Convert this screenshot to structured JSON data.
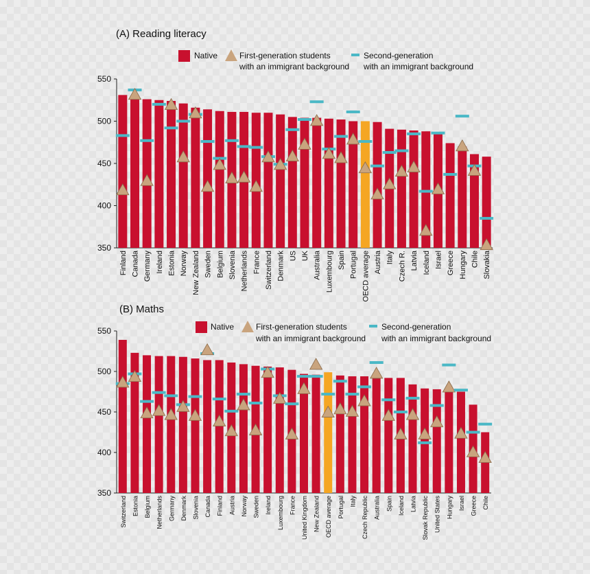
{
  "chart_data": [
    {
      "type": "bar",
      "title": "(A) Reading literacy",
      "legend": {
        "native": "Native",
        "first_line1": "First-generation students",
        "first_line2": "with an immigrant background",
        "second_line1": "Second-generation",
        "second_line2": "with an immigrant background"
      },
      "ylim": [
        350,
        550
      ],
      "yticks": [
        350,
        400,
        450,
        500,
        550
      ],
      "highlight": "OECD average",
      "categories": [
        "Finland",
        "Canada",
        "Germany",
        "Ireland",
        "Estonia",
        "Norway",
        "New Zealand",
        "Sweden",
        "Belgium",
        "Slovenia",
        "Netherlands",
        "France",
        "Switzerland",
        "Denmark",
        "US",
        "UK",
        "Australia",
        "Luxembourg",
        "Spain",
        "Portugal",
        "OECD average",
        "Austria",
        "Italy",
        "Czech R.",
        "Latvia",
        "Iceland",
        "Israel",
        "Greece",
        "Hungary",
        "Chile",
        "Slovakia"
      ],
      "series": [
        {
          "name": "Native",
          "values": [
            531,
            527,
            526,
            525,
            524,
            521,
            516,
            514,
            512,
            511,
            511,
            510,
            510,
            508,
            505,
            504,
            504,
            503,
            502,
            500,
            500,
            499,
            491,
            490,
            489,
            488,
            486,
            474,
            470,
            461,
            458
          ]
        },
        {
          "name": "First-generation students with an immigrant background",
          "values": [
            418,
            531,
            429,
            null,
            519,
            457,
            509,
            422,
            448,
            432,
            433,
            422,
            457,
            448,
            458,
            472,
            500,
            461,
            456,
            478,
            444,
            413,
            425,
            440,
            445,
            370,
            419,
            null,
            470,
            441,
            353
          ]
        },
        {
          "name": "Second-generation with an immigrant background",
          "values": [
            483,
            537,
            477,
            520,
            492,
            500,
            508,
            476,
            456,
            477,
            470,
            469,
            458,
            449,
            490,
            502,
            523,
            467,
            482,
            511,
            476,
            447,
            463,
            465,
            485,
            417,
            486,
            437,
            506,
            447,
            385
          ]
        }
      ]
    },
    {
      "type": "bar",
      "title": "(B) Maths",
      "legend": {
        "native": "Native",
        "first_line1": "First-generation students",
        "first_line2": "with an immigrant background",
        "second_line1": "Second-generation",
        "second_line2": "with an immigrant background"
      },
      "ylim": [
        350,
        550
      ],
      "yticks": [
        350,
        400,
        450,
        500,
        550
      ],
      "highlight": "OECD average",
      "categories": [
        "Switzerland",
        "Estonia",
        "Belgium",
        "Netherlands",
        "Germany",
        "Denmark",
        "Slovenia",
        "Canada",
        "Finland",
        "Austria",
        "Norway",
        "Sweden",
        "Ireland",
        "Luxembourg",
        "France",
        "United Kingdom",
        "New Zealand",
        "OECD average",
        "Portugal",
        "Italy",
        "Czech Republic",
        "Australia",
        "Spain",
        "Iceland",
        "Latvia",
        "Slovak Republic",
        "United States",
        "Hungary",
        "Israel",
        "Greece",
        "Chile"
      ],
      "series": [
        {
          "name": "Native",
          "values": [
            539,
            523,
            520,
            519,
            519,
            518,
            516,
            514,
            514,
            511,
            509,
            507,
            506,
            505,
            502,
            497,
            496,
            499,
            495,
            494,
            494,
            493,
            492,
            492,
            484,
            479,
            478,
            477,
            475,
            459,
            425
          ]
        },
        {
          "name": "First-generation students with an immigrant background",
          "values": [
            486,
            493,
            448,
            451,
            446,
            456,
            445,
            526,
            438,
            426,
            458,
            427,
            498,
            466,
            422,
            478,
            508,
            449,
            453,
            450,
            463,
            497,
            445,
            422,
            446,
            422,
            437,
            480,
            423,
            400,
            393
          ]
        },
        {
          "name": "Second-generation with an immigrant background",
          "values": [
            485,
            497,
            463,
            474,
            470,
            459,
            469,
            522,
            466,
            451,
            472,
            461,
            503,
            470,
            460,
            494,
            494,
            472,
            488,
            472,
            481,
            511,
            465,
            450,
            467,
            412,
            458,
            508,
            477,
            425,
            435
          ]
        }
      ]
    }
  ]
}
